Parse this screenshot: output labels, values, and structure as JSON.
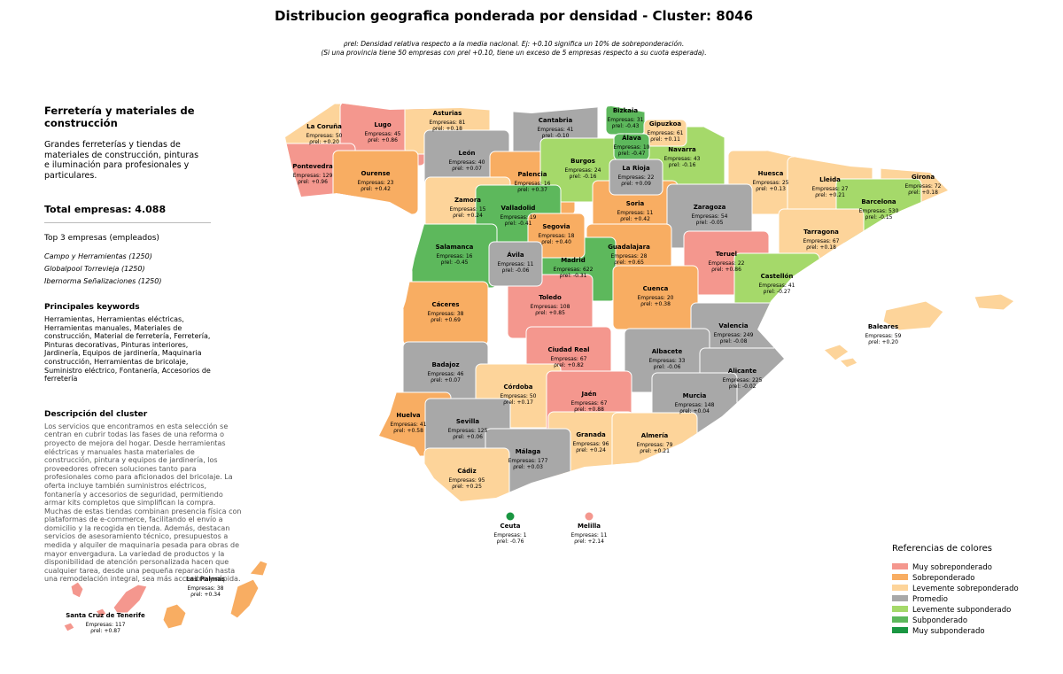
{
  "header": {
    "title": "Distribucion geografica ponderada por densidad - Cluster: 8046",
    "subtitle": [
      "ρrel: Densidad relativa respecto a la media nacional. Ej: +0.10 significa un 10% de sobreponderación.",
      "(Si una provincia tiene 50 empresas con ρrel +0.10, tiene un exceso de 5 empresas respecto a su cuota esperada)."
    ]
  },
  "panel": {
    "title": "Ferretería y materiales de construcción",
    "description": "Grandes ferreterías y tiendas de materiales de construcción, pinturas e iluminación para profesionales y particulares.",
    "total": "Total empresas: 4.088",
    "top_title": "Top 3 empresas (empleados)",
    "top": [
      "Campo y Herramientas (1250)",
      "Globalpool Torrevieja (1250)",
      "Ibernorma Señalizaciones (1250)"
    ],
    "keywords_title": "Principales keywords",
    "keywords": "Herramientas, Herramientas eléctricas, Herramientas manuales, Materiales de construcción, Material de ferretería, Ferretería, Pinturas decorativas, Pinturas interiores, Jardinería, Equipos de jardinería, Maquinaria construcción, Herramientas de bricolaje, Suministro eléctrico, Fontanería, Accesorios de ferretería",
    "cluster_title": "Descripción del cluster",
    "cluster": "Los servicios que encontramos en esta selección se centran en cubrir todas las fases de una reforma o proyecto de mejora del hogar. Desde herramientas eléctricas y manuales hasta materiales de construcción, pintura y equipos de jardinería, los proveedores ofrecen soluciones tanto para profesionales como para aficionados del bricolaje. La oferta incluye también suministros eléctricos, fontanería y accesorios de seguridad, permitiendo armar kits completos que simplifican la compra. Muchas de estas tiendas combinan presencia física con plataformas de e-commerce, facilitando el envío a domicilio y la recogida en tienda. Además, destacan servicios de asesoramiento técnico, presupuestos a medida y alquiler de maquinaria pesada para obras de mayor envergadura. La variedad de productos y la disponibilidad de atención personalizada hacen que cualquier tarea, desde una pequeña reparación hasta una remodelación integral, sea más accesible y rápida."
  },
  "legend": {
    "title": "Referencias de colores",
    "items": [
      {
        "name": "Muy sobreponderado",
        "color": "#f4978e"
      },
      {
        "name": "Sobreponderado",
        "color": "#f8ad62"
      },
      {
        "name": "Levemente sobreponderado",
        "color": "#fdd49a"
      },
      {
        "name": "Promedio",
        "color": "#a8a8a8"
      },
      {
        "name": "Levemente subponderado",
        "color": "#a5d96a"
      },
      {
        "name": "Subponderado",
        "color": "#5db85c"
      },
      {
        "name": "Muy subponderado",
        "color": "#1a9641"
      }
    ]
  },
  "provinces": [
    {
      "name": "La Coruña",
      "companies": "Empresas: 50",
      "rho": "ρrel: +0.20",
      "color": "#fdd49a"
    },
    {
      "name": "Lugo",
      "companies": "Empresas: 45",
      "rho": "ρrel: +0.86",
      "color": "#f4978e"
    },
    {
      "name": "Asturias",
      "companies": "Empresas: 81",
      "rho": "ρrel: +0.18",
      "color": "#fdd49a"
    },
    {
      "name": "Cantabria",
      "companies": "Empresas: 41",
      "rho": "ρrel: -0.10",
      "color": "#a8a8a8"
    },
    {
      "name": "Bizkaia",
      "companies": "Empresas: 31",
      "rho": "ρrel: -0.43",
      "color": "#5db85c"
    },
    {
      "name": "Gipuzkoa",
      "companies": "Empresas: 61",
      "rho": "ρrel: +0.11",
      "color": "#fdd49a"
    },
    {
      "name": "Álava",
      "companies": "Empresas: 10",
      "rho": "ρrel: -0.47",
      "color": "#5db85c"
    },
    {
      "name": "Navarra",
      "companies": "Empresas: 43",
      "rho": "ρrel: -0.16",
      "color": "#a5d96a"
    },
    {
      "name": "León",
      "companies": "Empresas: 40",
      "rho": "ρrel: +0.07",
      "color": "#a8a8a8"
    },
    {
      "name": "Palencia",
      "companies": "Empresas: 16",
      "rho": "ρrel: +0.37",
      "color": "#f8ad62"
    },
    {
      "name": "Burgos",
      "companies": "Empresas: 24",
      "rho": "ρrel: -0.16",
      "color": "#a5d96a"
    },
    {
      "name": "La Rioja",
      "companies": "Empresas: 22",
      "rho": "ρrel: +0.09",
      "color": "#a8a8a8"
    },
    {
      "name": "Pontevedra",
      "companies": "Empresas: 129",
      "rho": "ρrel: +0.96",
      "color": "#f4978e"
    },
    {
      "name": "Ourense",
      "companies": "Empresas: 23",
      "rho": "ρrel: +0.42",
      "color": "#f8ad62"
    },
    {
      "name": "Huesca",
      "companies": "Empresas: 25",
      "rho": "ρrel: +0.13",
      "color": "#fdd49a"
    },
    {
      "name": "Lleida",
      "companies": "Empresas: 27",
      "rho": "ρrel: +0.21",
      "color": "#fdd49a"
    },
    {
      "name": "Girona",
      "companies": "Empresas: 72",
      "rho": "ρrel: +0.18",
      "color": "#fdd49a"
    },
    {
      "name": "Zamora",
      "companies": "Empresas: 15",
      "rho": "ρrel: +0.24",
      "color": "#fdd49a"
    },
    {
      "name": "Valladolid",
      "companies": "Empresas: 19",
      "rho": "ρrel: -0.41",
      "color": "#5db85c"
    },
    {
      "name": "Soria",
      "companies": "Empresas: 11",
      "rho": "ρrel: +0.42",
      "color": "#f8ad62"
    },
    {
      "name": "Zaragoza",
      "companies": "Empresas: 54",
      "rho": "ρrel: -0.05",
      "color": "#a8a8a8"
    },
    {
      "name": "Barcelona",
      "companies": "Empresas: 530",
      "rho": "ρrel: -0.15",
      "color": "#a5d96a"
    },
    {
      "name": "Segovia",
      "companies": "Empresas: 18",
      "rho": "ρrel: +0.40",
      "color": "#f8ad62"
    },
    {
      "name": "Tarragona",
      "companies": "Empresas: 67",
      "rho": "ρrel: +0.18",
      "color": "#fdd49a"
    },
    {
      "name": "Salamanca",
      "companies": "Empresas: 16",
      "rho": "ρrel: -0.45",
      "color": "#5db85c"
    },
    {
      "name": "Guadalajara",
      "companies": "Empresas: 28",
      "rho": "ρrel: +0.65",
      "color": "#f8ad62"
    },
    {
      "name": "Ávila",
      "companies": "Empresas: 11",
      "rho": "ρrel: -0.06",
      "color": "#a8a8a8"
    },
    {
      "name": "Madrid",
      "companies": "Empresas: 622",
      "rho": "ρrel: -0.31",
      "color": "#5db85c"
    },
    {
      "name": "Teruel",
      "companies": "Empresas: 22",
      "rho": "ρrel: +0.86",
      "color": "#f4978e"
    },
    {
      "name": "Castellón",
      "companies": "Empresas: 41",
      "rho": "ρrel: -0.27",
      "color": "#a5d96a"
    },
    {
      "name": "Cáceres",
      "companies": "Empresas: 38",
      "rho": "ρrel: +0.69",
      "color": "#f8ad62"
    },
    {
      "name": "Toledo",
      "companies": "Empresas: 108",
      "rho": "ρrel: +0.85",
      "color": "#f4978e"
    },
    {
      "name": "Cuenca",
      "companies": "Empresas: 20",
      "rho": "ρrel: +0.38",
      "color": "#f8ad62"
    },
    {
      "name": "Baleares",
      "companies": "Empresas: 59",
      "rho": "ρrel: +0.20",
      "color": "#fdd49a"
    },
    {
      "name": "Valencia",
      "companies": "Empresas: 249",
      "rho": "ρrel: -0.08",
      "color": "#a8a8a8"
    },
    {
      "name": "Ciudad Real",
      "companies": "Empresas: 67",
      "rho": "ρrel: +0.82",
      "color": "#f4978e"
    },
    {
      "name": "Albacete",
      "companies": "Empresas: 33",
      "rho": "ρrel: -0.06",
      "color": "#a8a8a8"
    },
    {
      "name": "Badajoz",
      "companies": "Empresas: 46",
      "rho": "ρrel: +0.07",
      "color": "#a8a8a8"
    },
    {
      "name": "Alicante",
      "companies": "Empresas: 225",
      "rho": "ρrel: -0.02",
      "color": "#a8a8a8"
    },
    {
      "name": "Córdoba",
      "companies": "Empresas: 50",
      "rho": "ρrel: +0.17",
      "color": "#fdd49a"
    },
    {
      "name": "Jaén",
      "companies": "Empresas: 67",
      "rho": "ρrel: +0.88",
      "color": "#f4978e"
    },
    {
      "name": "Murcia",
      "companies": "Empresas: 148",
      "rho": "ρrel: +0.04",
      "color": "#a8a8a8"
    },
    {
      "name": "Huelva",
      "companies": "Empresas: 41",
      "rho": "ρrel: +0.58",
      "color": "#f8ad62"
    },
    {
      "name": "Sevilla",
      "companies": "Empresas: 125",
      "rho": "ρrel: +0.06",
      "color": "#a8a8a8"
    },
    {
      "name": "Granada",
      "companies": "Empresas: 96",
      "rho": "ρrel: +0.24",
      "color": "#fdd49a"
    },
    {
      "name": "Almería",
      "companies": "Empresas: 79",
      "rho": "ρrel: +0.21",
      "color": "#fdd49a"
    },
    {
      "name": "Málaga",
      "companies": "Empresas: 177",
      "rho": "ρrel: +0.03",
      "color": "#a8a8a8"
    },
    {
      "name": "Cádiz",
      "companies": "Empresas: 95",
      "rho": "ρrel: +0.25",
      "color": "#fdd49a"
    },
    {
      "name": "Ceuta",
      "companies": "Empresas: 1",
      "rho": "ρrel: -0.76",
      "color": "#1a9641"
    },
    {
      "name": "Melilla",
      "companies": "Empresas: 11",
      "rho": "ρrel: +2.14",
      "color": "#f4978e"
    },
    {
      "name": "Las Palmas",
      "companies": "Empresas: 38",
      "rho": "ρrel: +0.34",
      "color": "#f8ad62"
    },
    {
      "name": "Santa Cruz de Tenerife",
      "companies": "Empresas: 117",
      "rho": "ρrel: +0.87",
      "color": "#f4978e"
    }
  ]
}
